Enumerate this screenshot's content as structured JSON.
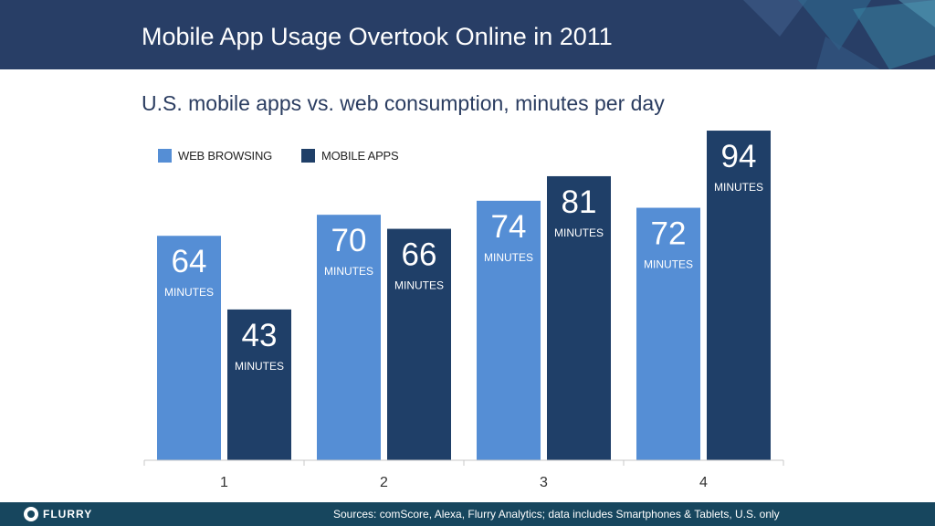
{
  "header": {
    "title": "Mobile App Usage Overtook Online in 2011"
  },
  "subtitle": "U.S. mobile apps vs. web consumption, minutes per day",
  "legend": {
    "items": [
      {
        "label": "WEB BROWSING",
        "color": "#558ed5"
      },
      {
        "label": "MOBILE APPS",
        "color": "#1f3f68"
      }
    ]
  },
  "chart_data": {
    "type": "bar",
    "categories": [
      "1",
      "2",
      "3",
      "4"
    ],
    "series": [
      {
        "name": "WEB BROWSING",
        "values": [
          64,
          70,
          74,
          72
        ],
        "color": "#558ed5"
      },
      {
        "name": "MOBILE APPS",
        "values": [
          43,
          66,
          81,
          94
        ],
        "color": "#1f3f68"
      }
    ],
    "unit_label": "MINUTES",
    "ylim": [
      0,
      100
    ],
    "grid": false,
    "legend_position": "top-left"
  },
  "footer": {
    "logo_text": "FLURRY",
    "sources": "Sources: comScore, Alexa, Flurry Analytics; data includes Smartphones & Tablets, U.S. only"
  }
}
